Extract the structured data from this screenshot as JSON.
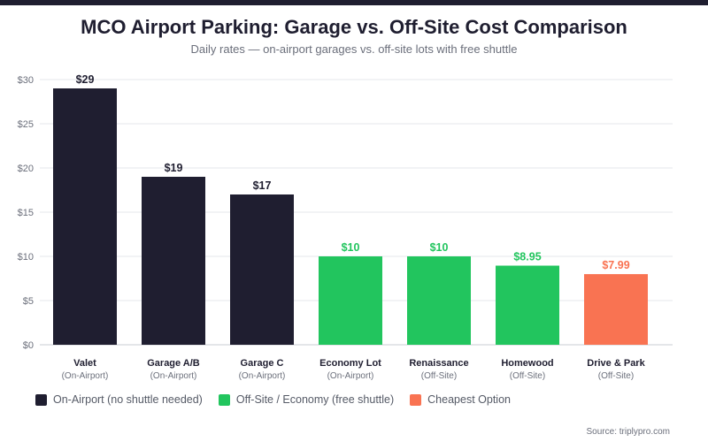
{
  "header": {
    "title": "MCO Airport Parking: Garage vs. Off-Site Cost Comparison",
    "subtitle": "Daily rates — on-airport garages vs. off-site lots with free shuttle"
  },
  "colors": {
    "on_airport": "#1f1e30",
    "off_site": "#22c55e",
    "cheapest": "#f97352",
    "grid": "#e6e7eb",
    "tick_text": "#6b6f7b",
    "category_text": "#1f1e30"
  },
  "legend": [
    {
      "label": "On-Airport (no shuttle needed)",
      "color": "#1f1e30"
    },
    {
      "label": "Off-Site / Economy (free shuttle)",
      "color": "#22c55e"
    },
    {
      "label": "Cheapest Option",
      "color": "#f97352"
    }
  ],
  "source": "Source: triplypro.com",
  "chart_data": {
    "type": "bar",
    "categories": [
      "Valet",
      "Garage A/B",
      "Garage C",
      "Economy Lot",
      "Renaissance",
      "Homewood",
      "Drive & Park"
    ],
    "sublabels": [
      "(On-Airport)",
      "(On-Airport)",
      "(On-Airport)",
      "(On-Airport)",
      "(Off-Site)",
      "(Off-Site)",
      "(Off-Site)"
    ],
    "values": [
      29,
      19,
      17,
      10,
      10,
      8.95,
      7.99
    ],
    "value_labels": [
      "$29",
      "$19",
      "$17",
      "$10",
      "$10",
      "$8.95",
      "$7.99"
    ],
    "bar_colors": [
      "#1f1e30",
      "#1f1e30",
      "#1f1e30",
      "#22c55e",
      "#22c55e",
      "#22c55e",
      "#f97352"
    ],
    "yticks": [
      "$0",
      "$5",
      "$10",
      "$15",
      "$20",
      "$25",
      "$30"
    ],
    "ylim": [
      0,
      30
    ],
    "grid": true,
    "legend_position": "bottom-left"
  }
}
